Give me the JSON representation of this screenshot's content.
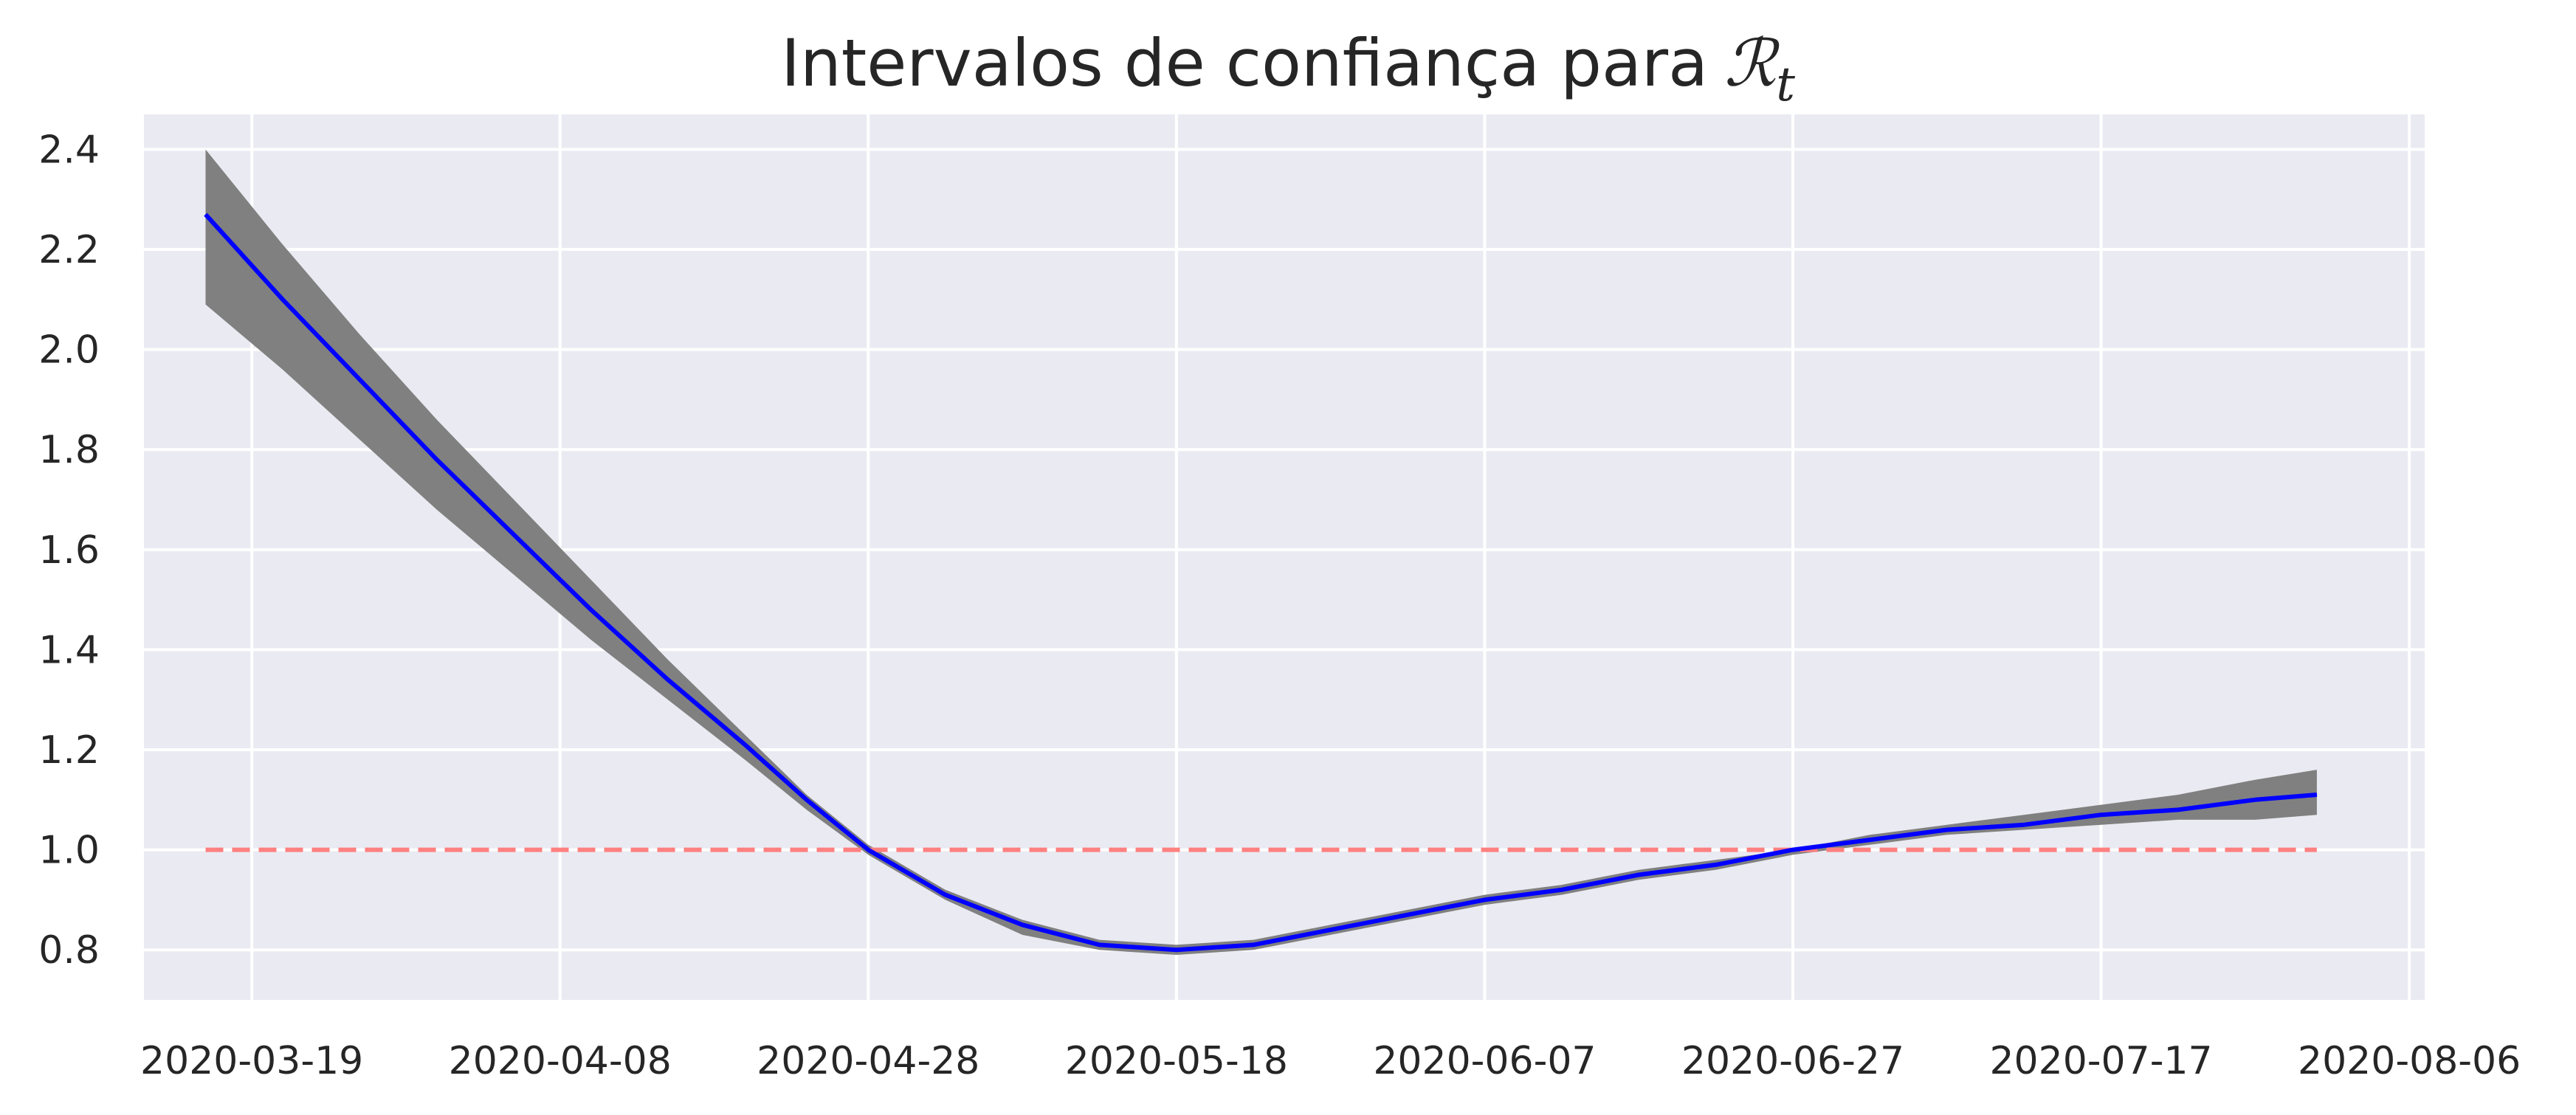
{
  "chart_data": {
    "type": "line",
    "title": "Intervalos de confiança para",
    "title_symbol": "ℛ",
    "title_subscript": "t",
    "xlabel": "",
    "ylabel": "",
    "x_ticks": [
      "2020-03-19",
      "2020-04-08",
      "2020-04-28",
      "2020-05-18",
      "2020-06-07",
      "2020-06-27",
      "2020-07-17",
      "2020-08-06"
    ],
    "y_ticks": [
      "0.8",
      "1.0",
      "1.2",
      "1.4",
      "1.6",
      "1.8",
      "2.0",
      "2.2",
      "2.4"
    ],
    "xlim": [
      "2020-03-12",
      "2020-08-07"
    ],
    "ylim": [
      0.7,
      2.47
    ],
    "grid": true,
    "colors": {
      "background": "#eaeaf2",
      "grid": "#ffffff",
      "series": "#0000ff",
      "band": "#808080",
      "reference": "#ff8080"
    },
    "series": [
      {
        "values": [
          {
            "x": "2020-03-16",
            "y": 2.27,
            "lower": 2.09,
            "upper": 2.4
          },
          {
            "x": "2020-03-21",
            "y": 2.1,
            "lower": 1.96,
            "upper": 2.21
          },
          {
            "x": "2020-03-26",
            "y": 1.94,
            "lower": 1.82,
            "upper": 2.03
          },
          {
            "x": "2020-03-31",
            "y": 1.78,
            "lower": 1.68,
            "upper": 1.86
          },
          {
            "x": "2020-04-05",
            "y": 1.63,
            "lower": 1.55,
            "upper": 1.7
          },
          {
            "x": "2020-04-10",
            "y": 1.48,
            "lower": 1.42,
            "upper": 1.54
          },
          {
            "x": "2020-04-15",
            "y": 1.34,
            "lower": 1.3,
            "upper": 1.38
          },
          {
            "x": "2020-04-20",
            "y": 1.21,
            "lower": 1.18,
            "upper": 1.23
          },
          {
            "x": "2020-04-24",
            "y": 1.1,
            "lower": 1.08,
            "upper": 1.11
          },
          {
            "x": "2020-04-28",
            "y": 1.0,
            "lower": 0.99,
            "upper": 1.01
          },
          {
            "x": "2020-05-03",
            "y": 0.91,
            "lower": 0.9,
            "upper": 0.92
          },
          {
            "x": "2020-05-08",
            "y": 0.85,
            "lower": 0.83,
            "upper": 0.86
          },
          {
            "x": "2020-05-13",
            "y": 0.81,
            "lower": 0.8,
            "upper": 0.82
          },
          {
            "x": "2020-05-18",
            "y": 0.8,
            "lower": 0.79,
            "upper": 0.81
          },
          {
            "x": "2020-05-23",
            "y": 0.81,
            "lower": 0.8,
            "upper": 0.82
          },
          {
            "x": "2020-05-28",
            "y": 0.84,
            "lower": 0.83,
            "upper": 0.85
          },
          {
            "x": "2020-06-02",
            "y": 0.87,
            "lower": 0.86,
            "upper": 0.88
          },
          {
            "x": "2020-06-07",
            "y": 0.9,
            "lower": 0.89,
            "upper": 0.91
          },
          {
            "x": "2020-06-12",
            "y": 0.92,
            "lower": 0.91,
            "upper": 0.93
          },
          {
            "x": "2020-06-17",
            "y": 0.95,
            "lower": 0.94,
            "upper": 0.96
          },
          {
            "x": "2020-06-22",
            "y": 0.97,
            "lower": 0.96,
            "upper": 0.98
          },
          {
            "x": "2020-06-27",
            "y": 1.0,
            "lower": 0.99,
            "upper": 1.0
          },
          {
            "x": "2020-07-02",
            "y": 1.02,
            "lower": 1.01,
            "upper": 1.03
          },
          {
            "x": "2020-07-07",
            "y": 1.04,
            "lower": 1.03,
            "upper": 1.05
          },
          {
            "x": "2020-07-12",
            "y": 1.05,
            "lower": 1.04,
            "upper": 1.07
          },
          {
            "x": "2020-07-17",
            "y": 1.07,
            "lower": 1.05,
            "upper": 1.09
          },
          {
            "x": "2020-07-22",
            "y": 1.08,
            "lower": 1.06,
            "upper": 1.11
          },
          {
            "x": "2020-07-27",
            "y": 1.1,
            "lower": 1.06,
            "upper": 1.14
          },
          {
            "x": "2020-07-31",
            "y": 1.11,
            "lower": 1.07,
            "upper": 1.16
          }
        ]
      }
    ],
    "reference_line": {
      "y": 1.0,
      "x_start": "2020-03-16",
      "x_end": "2020-07-31",
      "style": "dashed"
    }
  }
}
